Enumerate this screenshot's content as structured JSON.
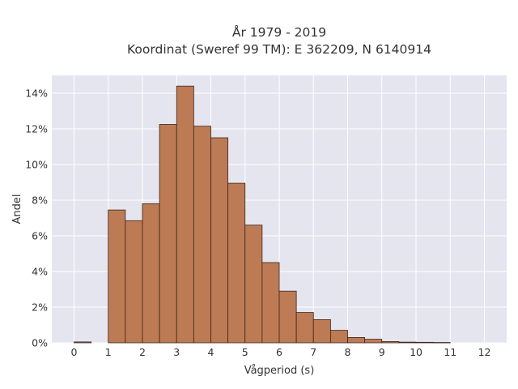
{
  "chart_data": {
    "type": "bar",
    "title_lines": [
      "År 1979 - 2019",
      "Koordinat (Sweref 99 TM): E 362209, N 6140914"
    ],
    "xlabel": "Vågperiod (s)",
    "ylabel": "Andel",
    "xlim": [
      -0.65,
      12.65
    ],
    "ylim": [
      0,
      15
    ],
    "x_ticks": [
      0,
      1,
      2,
      3,
      4,
      5,
      6,
      7,
      8,
      9,
      10,
      11,
      12
    ],
    "x_tick_labels": [
      "0",
      "1",
      "2",
      "3",
      "4",
      "5",
      "6",
      "7",
      "8",
      "9",
      "10",
      "11",
      "12"
    ],
    "y_ticks": [
      0,
      2,
      4,
      6,
      8,
      10,
      12,
      14
    ],
    "y_tick_labels": [
      "0%",
      "2%",
      "4%",
      "6%",
      "8%",
      "10%",
      "12%",
      "14%"
    ],
    "bin_width": 0.5,
    "bins": [
      {
        "x0": 0.0,
        "value": 0.05
      },
      {
        "x0": 1.0,
        "value": 7.45
      },
      {
        "x0": 1.5,
        "value": 6.85
      },
      {
        "x0": 2.0,
        "value": 7.8
      },
      {
        "x0": 2.5,
        "value": 12.25
      },
      {
        "x0": 3.0,
        "value": 14.4
      },
      {
        "x0": 3.5,
        "value": 12.15
      },
      {
        "x0": 4.0,
        "value": 11.5
      },
      {
        "x0": 4.5,
        "value": 8.95
      },
      {
        "x0": 5.0,
        "value": 6.6
      },
      {
        "x0": 5.5,
        "value": 4.5
      },
      {
        "x0": 6.0,
        "value": 2.9
      },
      {
        "x0": 6.5,
        "value": 1.7
      },
      {
        "x0": 7.0,
        "value": 1.3
      },
      {
        "x0": 7.5,
        "value": 0.7
      },
      {
        "x0": 8.0,
        "value": 0.3
      },
      {
        "x0": 8.5,
        "value": 0.2
      },
      {
        "x0": 9.0,
        "value": 0.07
      },
      {
        "x0": 9.5,
        "value": 0.04
      },
      {
        "x0": 10.0,
        "value": 0.03
      },
      {
        "x0": 10.5,
        "value": 0.02
      }
    ],
    "grid": true,
    "legend": "none",
    "colors": {
      "plot_background": "#e5e5ef",
      "bar_fill": "#bd7b55",
      "bar_edge": "#3a2418",
      "grid": "#ffffff",
      "text": "#333333"
    }
  }
}
